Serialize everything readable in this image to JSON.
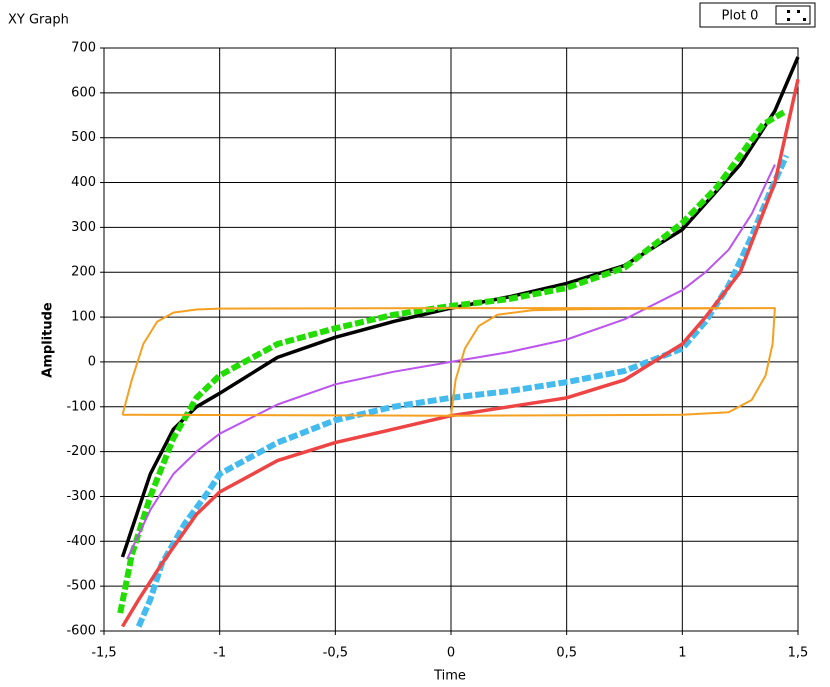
{
  "chart_data": {
    "type": "line",
    "title": "XY Graph",
    "x_label": "Time",
    "y_label": "Amplitude",
    "grid": true,
    "xlim": [
      -1.5,
      1.5
    ],
    "ylim": [
      -600,
      700
    ],
    "xticks": [
      {
        "value": -1.5,
        "label": "-1,5"
      },
      -1,
      {
        "value": -0.5,
        "label": "-0,5"
      },
      0,
      {
        "value": 0.5,
        "label": "0,5"
      },
      1,
      {
        "value": 1.5,
        "label": "1,5"
      }
    ],
    "yticks": [
      -600,
      -500,
      -400,
      -300,
      -200,
      -100,
      0,
      100,
      200,
      300,
      400,
      500,
      600,
      700
    ],
    "legend": "top-right",
    "series": [
      {
        "name": "Plot 0",
        "color": "#000000",
        "marker": "line",
        "x": [
          -1.42,
          -1.3,
          -1.2,
          -1.1,
          -1,
          -0.75,
          -0.5,
          -0.25,
          0,
          0.25,
          0.5,
          0.75,
          1,
          1.25,
          1.4,
          1.5
        ],
        "values": [
          -435,
          -250,
          -150,
          -100,
          -70,
          10,
          55,
          90,
          120,
          145,
          175,
          215,
          295,
          440,
          560,
          680
        ]
      },
      {
        "color": "#22dd00",
        "marker": "dash",
        "x": [
          -1.43,
          -1.38,
          -1.3,
          -1.2,
          -1.1,
          -1,
          -0.75,
          -0.5,
          -0.25,
          0,
          0.25,
          0.5,
          0.75,
          1,
          1.15,
          1.25,
          1.35,
          1.45
        ],
        "values": [
          -560,
          -430,
          -300,
          -170,
          -80,
          -30,
          40,
          75,
          105,
          125,
          140,
          165,
          210,
          310,
          390,
          460,
          530,
          560
        ]
      },
      {
        "color": "#44bbee",
        "marker": "dash",
        "x": [
          -1.35,
          -1.3,
          -1.25,
          -1.15,
          -1.05,
          -1,
          -0.75,
          -0.5,
          -0.25,
          0,
          0.25,
          0.5,
          0.75,
          1,
          1.1,
          1.2,
          1.3,
          1.38,
          1.45
        ],
        "values": [
          -590,
          -530,
          -450,
          -360,
          -290,
          -250,
          -180,
          -130,
          -100,
          -80,
          -65,
          -45,
          -20,
          30,
          90,
          170,
          280,
          380,
          460
        ]
      },
      {
        "color": "#ee4444",
        "marker": "line",
        "x": [
          -1.42,
          -1.35,
          -1.25,
          -1.1,
          -1,
          -0.75,
          -0.5,
          -0.25,
          0,
          0.25,
          0.5,
          0.75,
          1,
          1.1,
          1.25,
          1.4,
          1.5
        ],
        "values": [
          -590,
          -530,
          -450,
          -340,
          -290,
          -220,
          -180,
          -150,
          -120,
          -100,
          -80,
          -40,
          40,
          100,
          200,
          400,
          630
        ]
      },
      {
        "color": "#bb55ee",
        "marker": "line",
        "x": [
          -1.4,
          -1.3,
          -1.2,
          -1.1,
          -1,
          -0.75,
          -0.5,
          -0.25,
          0,
          0.25,
          0.5,
          0.75,
          1,
          1.1,
          1.2,
          1.3,
          1.4
        ],
        "values": [
          -440,
          -330,
          -250,
          -200,
          -160,
          -95,
          -50,
          -22,
          0,
          22,
          50,
          95,
          160,
          200,
          250,
          330,
          440
        ]
      },
      {
        "color": "#f5a020",
        "marker": "line",
        "x": [
          -1.42,
          -1.38,
          -1.33,
          -1.27,
          -1.2,
          -1.1,
          -1,
          0,
          0.5,
          1.4,
          1.39,
          1.36,
          1.3,
          1.2,
          1,
          0,
          -1.42,
          null,
          0,
          0.02,
          0.06,
          0.12,
          0.2,
          0.35,
          0.6,
          1.4
        ],
        "values": [
          -118,
          -40,
          40,
          90,
          110,
          117,
          119,
          120,
          120,
          120,
          40,
          -30,
          -85,
          -112,
          -118,
          -120,
          -118,
          null,
          -120,
          -40,
          30,
          80,
          105,
          115,
          118,
          120
        ]
      }
    ]
  }
}
